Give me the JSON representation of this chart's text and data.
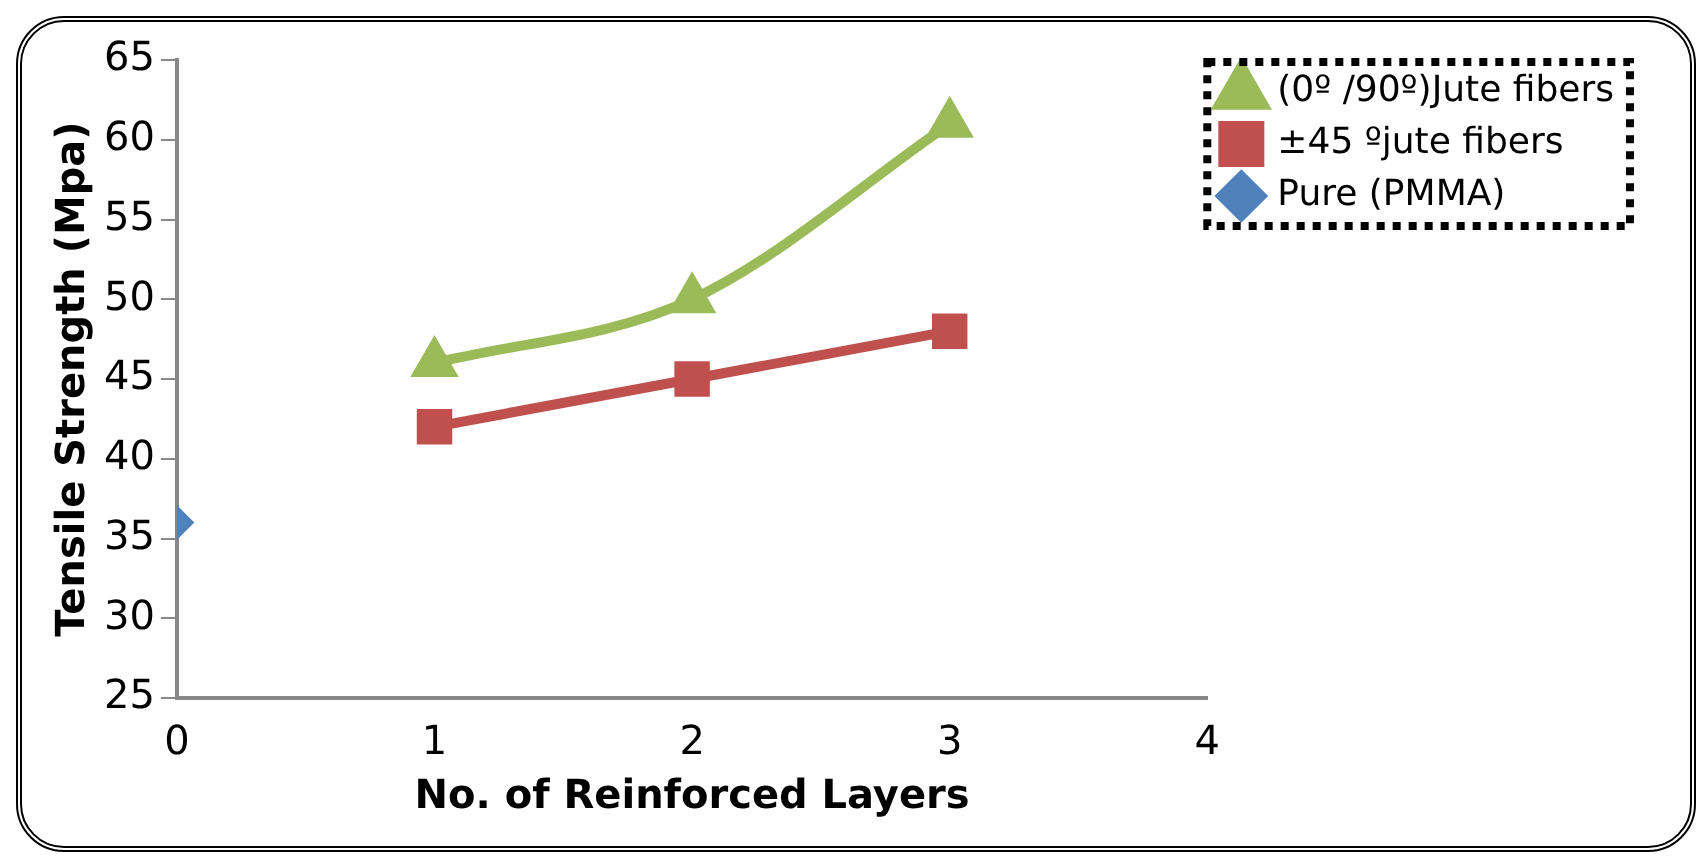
{
  "chart_data": {
    "type": "line",
    "xlabel": "No. of Reinforced Layers",
    "ylabel": "Tensile Strength (Mpa)",
    "xlim": [
      0,
      4
    ],
    "xticks": [
      0,
      1,
      2,
      3,
      4
    ],
    "ylim": [
      25,
      65
    ],
    "yticks": [
      25,
      30,
      35,
      40,
      45,
      50,
      55,
      60,
      65
    ],
    "grid": false,
    "legend": "top right",
    "series": [
      {
        "name": "(0º /90º)Jute fibers",
        "color": "#9bbb59",
        "x": [
          1,
          2,
          3
        ],
        "values": [
          46,
          50,
          61
        ],
        "marker": "triangle"
      },
      {
        "name": "±45 ºjute fibers",
        "color": "#c0504d",
        "x": [
          1,
          2,
          3
        ],
        "values": [
          42,
          45,
          48
        ],
        "marker": "square"
      },
      {
        "name": "Pure (PMMA)",
        "color": "#4f81bd",
        "type": "scatter",
        "x": [
          0
        ],
        "values": [
          36
        ],
        "marker": "diamond"
      }
    ]
  }
}
